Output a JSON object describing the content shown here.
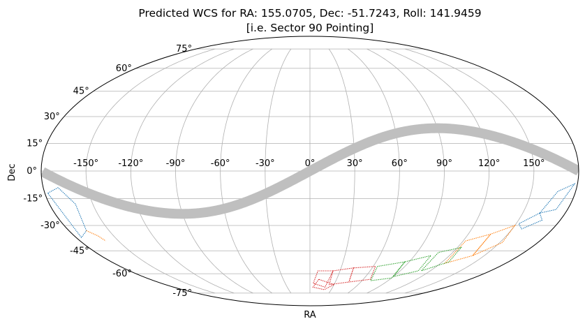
{
  "chart_data": {
    "type": "scatter",
    "projection": "mollweide",
    "title": "Predicted WCS for RA: 155.0705, Dec: -51.7243, Roll: 141.9459",
    "subtitle": "[i.e. Sector 90 Pointing]",
    "xlabel": "RA",
    "ylabel": "Dec",
    "grid": true,
    "x_ticks": [
      "-150°",
      "-120°",
      "-90°",
      "-60°",
      "-30°",
      "0°",
      "30°",
      "60°",
      "90°",
      "120°",
      "150°"
    ],
    "x_tick_values": [
      -150,
      -120,
      -90,
      -60,
      -30,
      0,
      30,
      60,
      90,
      120,
      150
    ],
    "y_ticks": [
      "75°",
      "60°",
      "45°",
      "30°",
      "15°",
      "0°",
      "-15°",
      "-30°",
      "-45°",
      "-60°",
      "-75°"
    ],
    "y_tick_values": [
      75,
      60,
      45,
      30,
      15,
      0,
      -15,
      -30,
      -45,
      -60,
      -75
    ],
    "xlim": [
      -180,
      180
    ],
    "ylim": [
      -90,
      90
    ],
    "ecliptic": {
      "name": "",
      "color": "#bfbfbf",
      "obliquity_deg": 23.44
    },
    "series": [
      {
        "color": "#1f77b4",
        "style": "dotted",
        "ccds": [
          [
            [
              -178,
              -12
            ],
            [
              -170,
              -9
            ],
            [
              -162,
              -18
            ],
            [
              -167,
              -33
            ],
            [
              -176,
              -37
            ]
          ],
          [
            [
              178,
              -7
            ],
            [
              168,
              -11
            ],
            [
              162,
              -23
            ],
            [
              172,
              -21
            ]
          ],
          [
            [
              162,
              -23
            ],
            [
              152,
              -29
            ],
            [
              157,
              -32
            ],
            [
              167,
              -27
            ]
          ]
        ]
      },
      {
        "color": "#ff7f0e",
        "style": "dotted",
        "ccds": [
          [
            [
              -167,
              -33
            ],
            [
              -162,
              -36
            ],
            [
              -160,
              -39
            ]
          ],
          [
            [
              150,
              -30
            ],
            [
              137,
              -35
            ],
            [
              140,
              -48
            ],
            [
              152,
              -40
            ]
          ],
          [
            [
              137,
              -35
            ],
            [
              122,
              -39
            ],
            [
              124,
              -53
            ],
            [
              140,
              -48
            ]
          ]
        ]
      },
      {
        "color": "#2ca02c",
        "style": "dotted",
        "ccds": [
          [
            [
              123,
              -43
            ],
            [
              108,
              -46
            ],
            [
              111,
              -58
            ],
            [
              126,
              -52
            ]
          ],
          [
            [
              104,
              -48
            ],
            [
              86,
              -52
            ],
            [
              90,
              -62
            ],
            [
              108,
              -58
            ]
          ],
          [
            [
              86,
              -52
            ],
            [
              64,
              -55
            ],
            [
              70,
              -65
            ],
            [
              90,
              -63
            ]
          ]
        ]
      },
      {
        "color": "#d62728",
        "style": "dotted",
        "ccds": [
          [
            [
              62,
              -55
            ],
            [
              42,
              -56
            ],
            [
              46,
              -66
            ],
            [
              68,
              -64
            ]
          ],
          [
            [
              42,
              -56
            ],
            [
              23,
              -58
            ],
            [
              24,
              -68
            ],
            [
              46,
              -66
            ]
          ],
          [
            [
              23,
              -58
            ],
            [
              8,
              -58
            ],
            [
              4,
              -67
            ],
            [
              20,
              -70
            ]
          ],
          [
            [
              10,
              -64
            ],
            [
              4,
              -70
            ],
            [
              20,
              -72
            ],
            [
              30,
              -68
            ]
          ]
        ]
      }
    ]
  }
}
